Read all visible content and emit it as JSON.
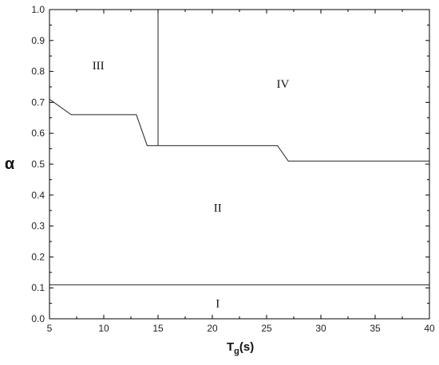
{
  "chart_data": {
    "type": "line",
    "xlabel_main": "T",
    "xlabel_sub": "g",
    "xlabel_tail": "(s)",
    "ylabel": "α",
    "xlim": [
      5,
      40
    ],
    "ylim": [
      0.0,
      1.0
    ],
    "x_ticks": [
      5,
      10,
      15,
      20,
      25,
      30,
      35,
      40
    ],
    "x_tick_labels": [
      "5",
      "10",
      "15",
      "20",
      "25",
      "30",
      "35",
      "40"
    ],
    "y_ticks": [
      0.0,
      0.1,
      0.2,
      0.3,
      0.4,
      0.5,
      0.6,
      0.7,
      0.8,
      0.9,
      1.0
    ],
    "y_tick_labels": [
      "0.0",
      "0.1",
      "0.2",
      "0.3",
      "0.4",
      "0.5",
      "0.6",
      "0.7",
      "0.8",
      "0.9",
      "1.0"
    ],
    "grid": false,
    "series": [
      {
        "x": [
          5,
          7,
          13,
          14,
          26,
          27,
          40
        ],
        "y": [
          0.71,
          0.66,
          0.66,
          0.56,
          0.56,
          0.51,
          0.51
        ]
      },
      {
        "x": [
          15,
          15
        ],
        "y": [
          0.56,
          1.0
        ]
      },
      {
        "x": [
          5,
          40
        ],
        "y": [
          0.11,
          0.11
        ]
      }
    ],
    "annotations": [
      {
        "text": "III",
        "x": 9.5,
        "y": 0.82
      },
      {
        "text": "IV",
        "x": 26.5,
        "y": 0.76
      },
      {
        "text": "II",
        "x": 20.5,
        "y": 0.36
      },
      {
        "text": "I",
        "x": 20.5,
        "y": 0.05
      }
    ]
  }
}
